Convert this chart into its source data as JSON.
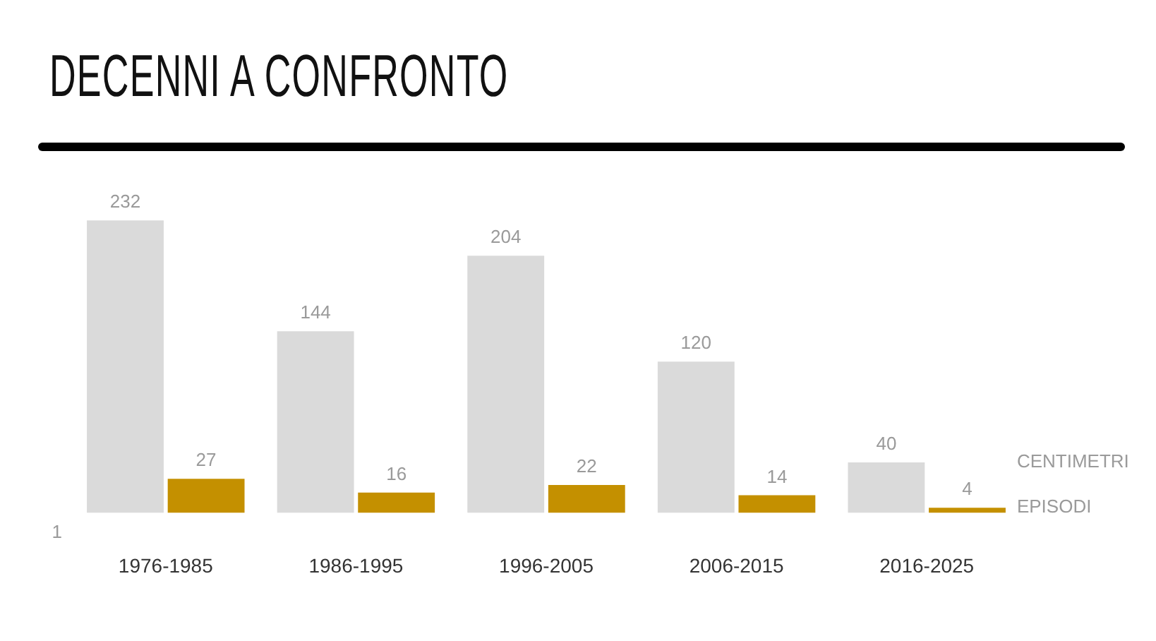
{
  "chart_data": {
    "type": "bar",
    "title": "DECENNI A CONFRONTO",
    "categories": [
      "1976-1985",
      "1986-1995",
      "1996-2005",
      "2006-2015",
      "2016-2025"
    ],
    "series": [
      {
        "name": "CENTIMETRI",
        "color": "#dadada",
        "values": [
          232,
          144,
          204,
          120,
          40
        ]
      },
      {
        "name": "EPISODI",
        "color": "#c49000",
        "values": [
          27,
          16,
          22,
          14,
          4
        ]
      }
    ],
    "data_labels": true,
    "annotations": [
      "1"
    ]
  }
}
